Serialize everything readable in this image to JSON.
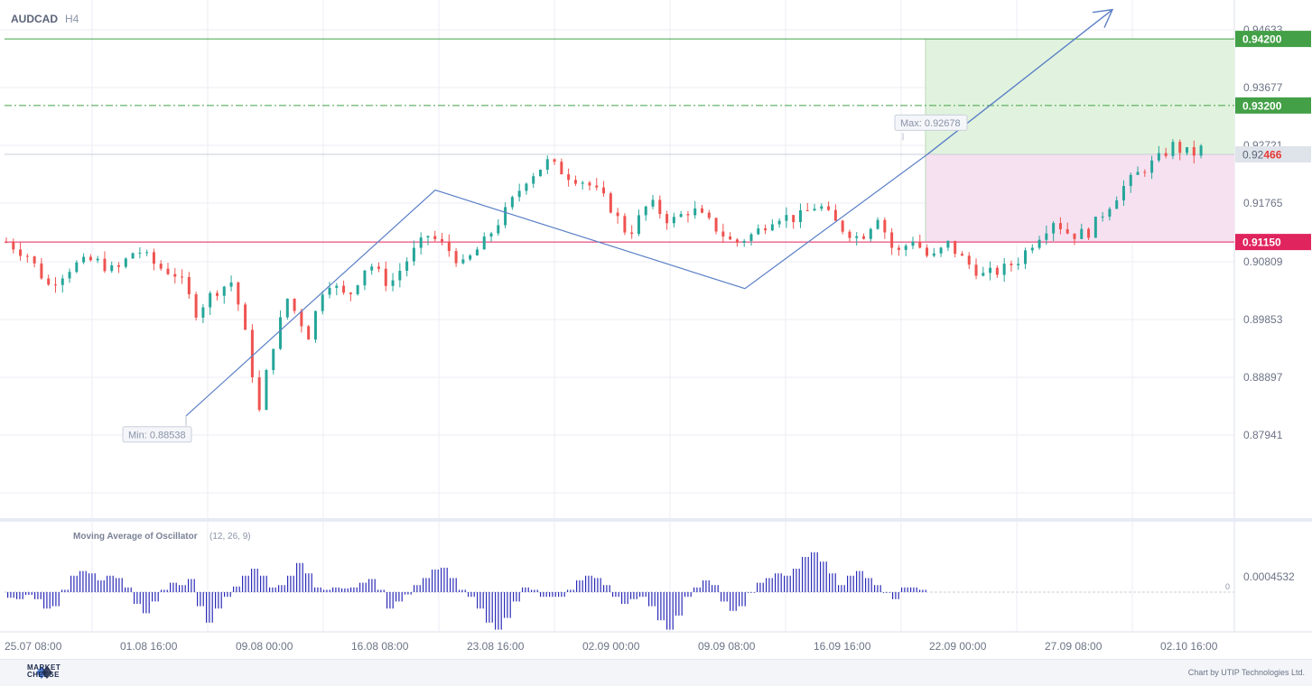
{
  "symbol": "AUDCAD",
  "timeframe": "H4",
  "footer": {
    "brand_line1": "MARKET",
    "brand_line2": "CHEESE",
    "credit": "Chart by UTIP Technologies Ltd."
  },
  "oscillator": {
    "title": "Moving Average of Oscillator",
    "params": "(12, 26, 9)",
    "tick_label": "0.0004532",
    "zero_label": "0"
  },
  "colors": {
    "bull": "#26a69a",
    "bear": "#ef5350",
    "target_line": "#43a047",
    "stop_line": "#e0245e",
    "trend": "#5b7fc7",
    "profit_zone": "#dff2dc",
    "loss_zone": "#f6dff0",
    "osc_bar": "#2b2bb8"
  },
  "chart_data": {
    "type": "candlestick",
    "symbol": "AUDCAD",
    "timeframe": "H4",
    "ylim": [
      0.8699,
      0.9473
    ],
    "y_ticks": [
      "0.94633",
      "0.93677",
      "0.92721",
      "0.91765",
      "0.90809",
      "0.89853",
      "0.88897",
      "0.87941"
    ],
    "x_ticks": [
      "25.07 08:00",
      "01.08 16:00",
      "09.08 00:00",
      "16.08 08:00",
      "23.08 16:00",
      "02.09 00:00",
      "09.09 08:00",
      "16.09 16:00",
      "22.09 00:00",
      "27.09 08:00",
      "02.10 16:00"
    ],
    "current_price": {
      "prefix": "0.92",
      "suffix": "466",
      "value": 0.92466
    },
    "levels": [
      {
        "label": "0.94200",
        "value": 0.942,
        "kind": "take-profit"
      },
      {
        "label": "0.93200",
        "value": 0.932,
        "kind": "entry"
      },
      {
        "label": "0.91150",
        "value": 0.9115,
        "kind": "stop-loss"
      }
    ],
    "annotations": [
      {
        "text": "Max: 0.92678",
        "value": 0.92678
      },
      {
        "text": "Min: 0.88538",
        "value": 0.88538
      }
    ],
    "price_path": [
      [
        0,
        0.9115
      ],
      [
        12,
        0.9095
      ],
      [
        24,
        0.905
      ],
      [
        38,
        0.908
      ],
      [
        50,
        0.9088
      ],
      [
        62,
        0.907
      ],
      [
        74,
        0.9105
      ],
      [
        86,
        0.9078
      ],
      [
        98,
        0.9065
      ],
      [
        108,
        0.901
      ],
      [
        118,
        0.904
      ],
      [
        128,
        0.9055
      ],
      [
        134,
        0.9005
      ],
      [
        144,
        0.886
      ],
      [
        150,
        0.8945
      ],
      [
        160,
        0.903
      ],
      [
        172,
        0.8975
      ],
      [
        182,
        0.906
      ],
      [
        194,
        0.903
      ],
      [
        206,
        0.9085
      ],
      [
        218,
        0.905
      ],
      [
        230,
        0.9095
      ],
      [
        240,
        0.9125
      ],
      [
        250,
        0.9108
      ],
      [
        260,
        0.908
      ],
      [
        272,
        0.9115
      ],
      [
        284,
        0.916
      ],
      [
        296,
        0.921
      ],
      [
        308,
        0.9235
      ],
      [
        320,
        0.9215
      ],
      [
        330,
        0.9205
      ],
      [
        342,
        0.9175
      ],
      [
        354,
        0.9125
      ],
      [
        366,
        0.9175
      ],
      [
        378,
        0.9145
      ],
      [
        390,
        0.9165
      ],
      [
        402,
        0.914
      ],
      [
        414,
        0.9112
      ],
      [
        426,
        0.9128
      ],
      [
        438,
        0.9155
      ],
      [
        450,
        0.915
      ],
      [
        462,
        0.9172
      ],
      [
        474,
        0.9138
      ],
      [
        486,
        0.912
      ],
      [
        496,
        0.9155
      ],
      [
        506,
        0.9095
      ],
      [
        516,
        0.912
      ],
      [
        526,
        0.9088
      ],
      [
        536,
        0.9112
      ],
      [
        546,
        0.9085
      ],
      [
        556,
        0.9065
      ],
      [
        566,
        0.9072
      ],
      [
        576,
        0.9088
      ],
      [
        586,
        0.912
      ],
      [
        596,
        0.9148
      ],
      [
        606,
        0.9125
      ],
      [
        616,
        0.913
      ],
      [
        626,
        0.9165
      ],
      [
        636,
        0.9198
      ],
      [
        646,
        0.9222
      ],
      [
        656,
        0.924
      ],
      [
        664,
        0.926
      ],
      [
        670,
        0.925
      ],
      [
        676,
        0.9248
      ],
      [
        680,
        0.9255
      ]
    ],
    "oscillator_values": [
      -0.00012,
      -0.00015,
      -6e-05,
      -0.00015,
      -0.00035,
      -0.0003,
      5e-05,
      0.00035,
      0.00045,
      0.0004,
      0.00025,
      0.00035,
      0.0003,
      0.0001,
      -0.00025,
      -0.00045,
      -0.0002,
      5e-05,
      0.0002,
      0.00015,
      0.00028,
      -0.0003,
      -0.00065,
      -0.00035,
      -0.0001,
      0.00012,
      0.00035,
      0.0005,
      0.00035,
      0.0001,
      0.00015,
      0.00035,
      0.00062,
      0.0004,
      0.0001,
      5e-05,
      0.0001,
      8e-05,
      0.0001,
      0.0002,
      0.00028,
      5e-05,
      -0.00035,
      -0.0002,
      -5e-05,
      0.00015,
      0.0003,
      0.00048,
      0.00052,
      0.0003,
      5e-05,
      -0.0001,
      -0.00035,
      -0.00065,
      -0.0008,
      -0.00055,
      -0.0002,
      0.0001,
      5e-05,
      -0.0001,
      -0.0001,
      -0.0001,
      5e-05,
      0.00025,
      0.00035,
      0.0003,
      0.00015,
      -0.0001,
      -0.00025,
      -0.00015,
      -0.0001,
      -0.0003,
      -0.0006,
      -0.0008,
      -0.0005,
      -0.0001,
      0.0001,
      0.00025,
      0.00015,
      -0.0002,
      -0.0004,
      -0.0003,
      0.0,
      0.0002,
      0.0003,
      0.0004,
      0.00035,
      0.0005,
      0.00075,
      0.00085,
      0.00065,
      0.0004,
      0.00015,
      0.00035,
      0.00045,
      0.0003,
      0.00015,
      0.0,
      -0.00015,
      0.0001,
      0.0001,
      5e-05
    ]
  }
}
